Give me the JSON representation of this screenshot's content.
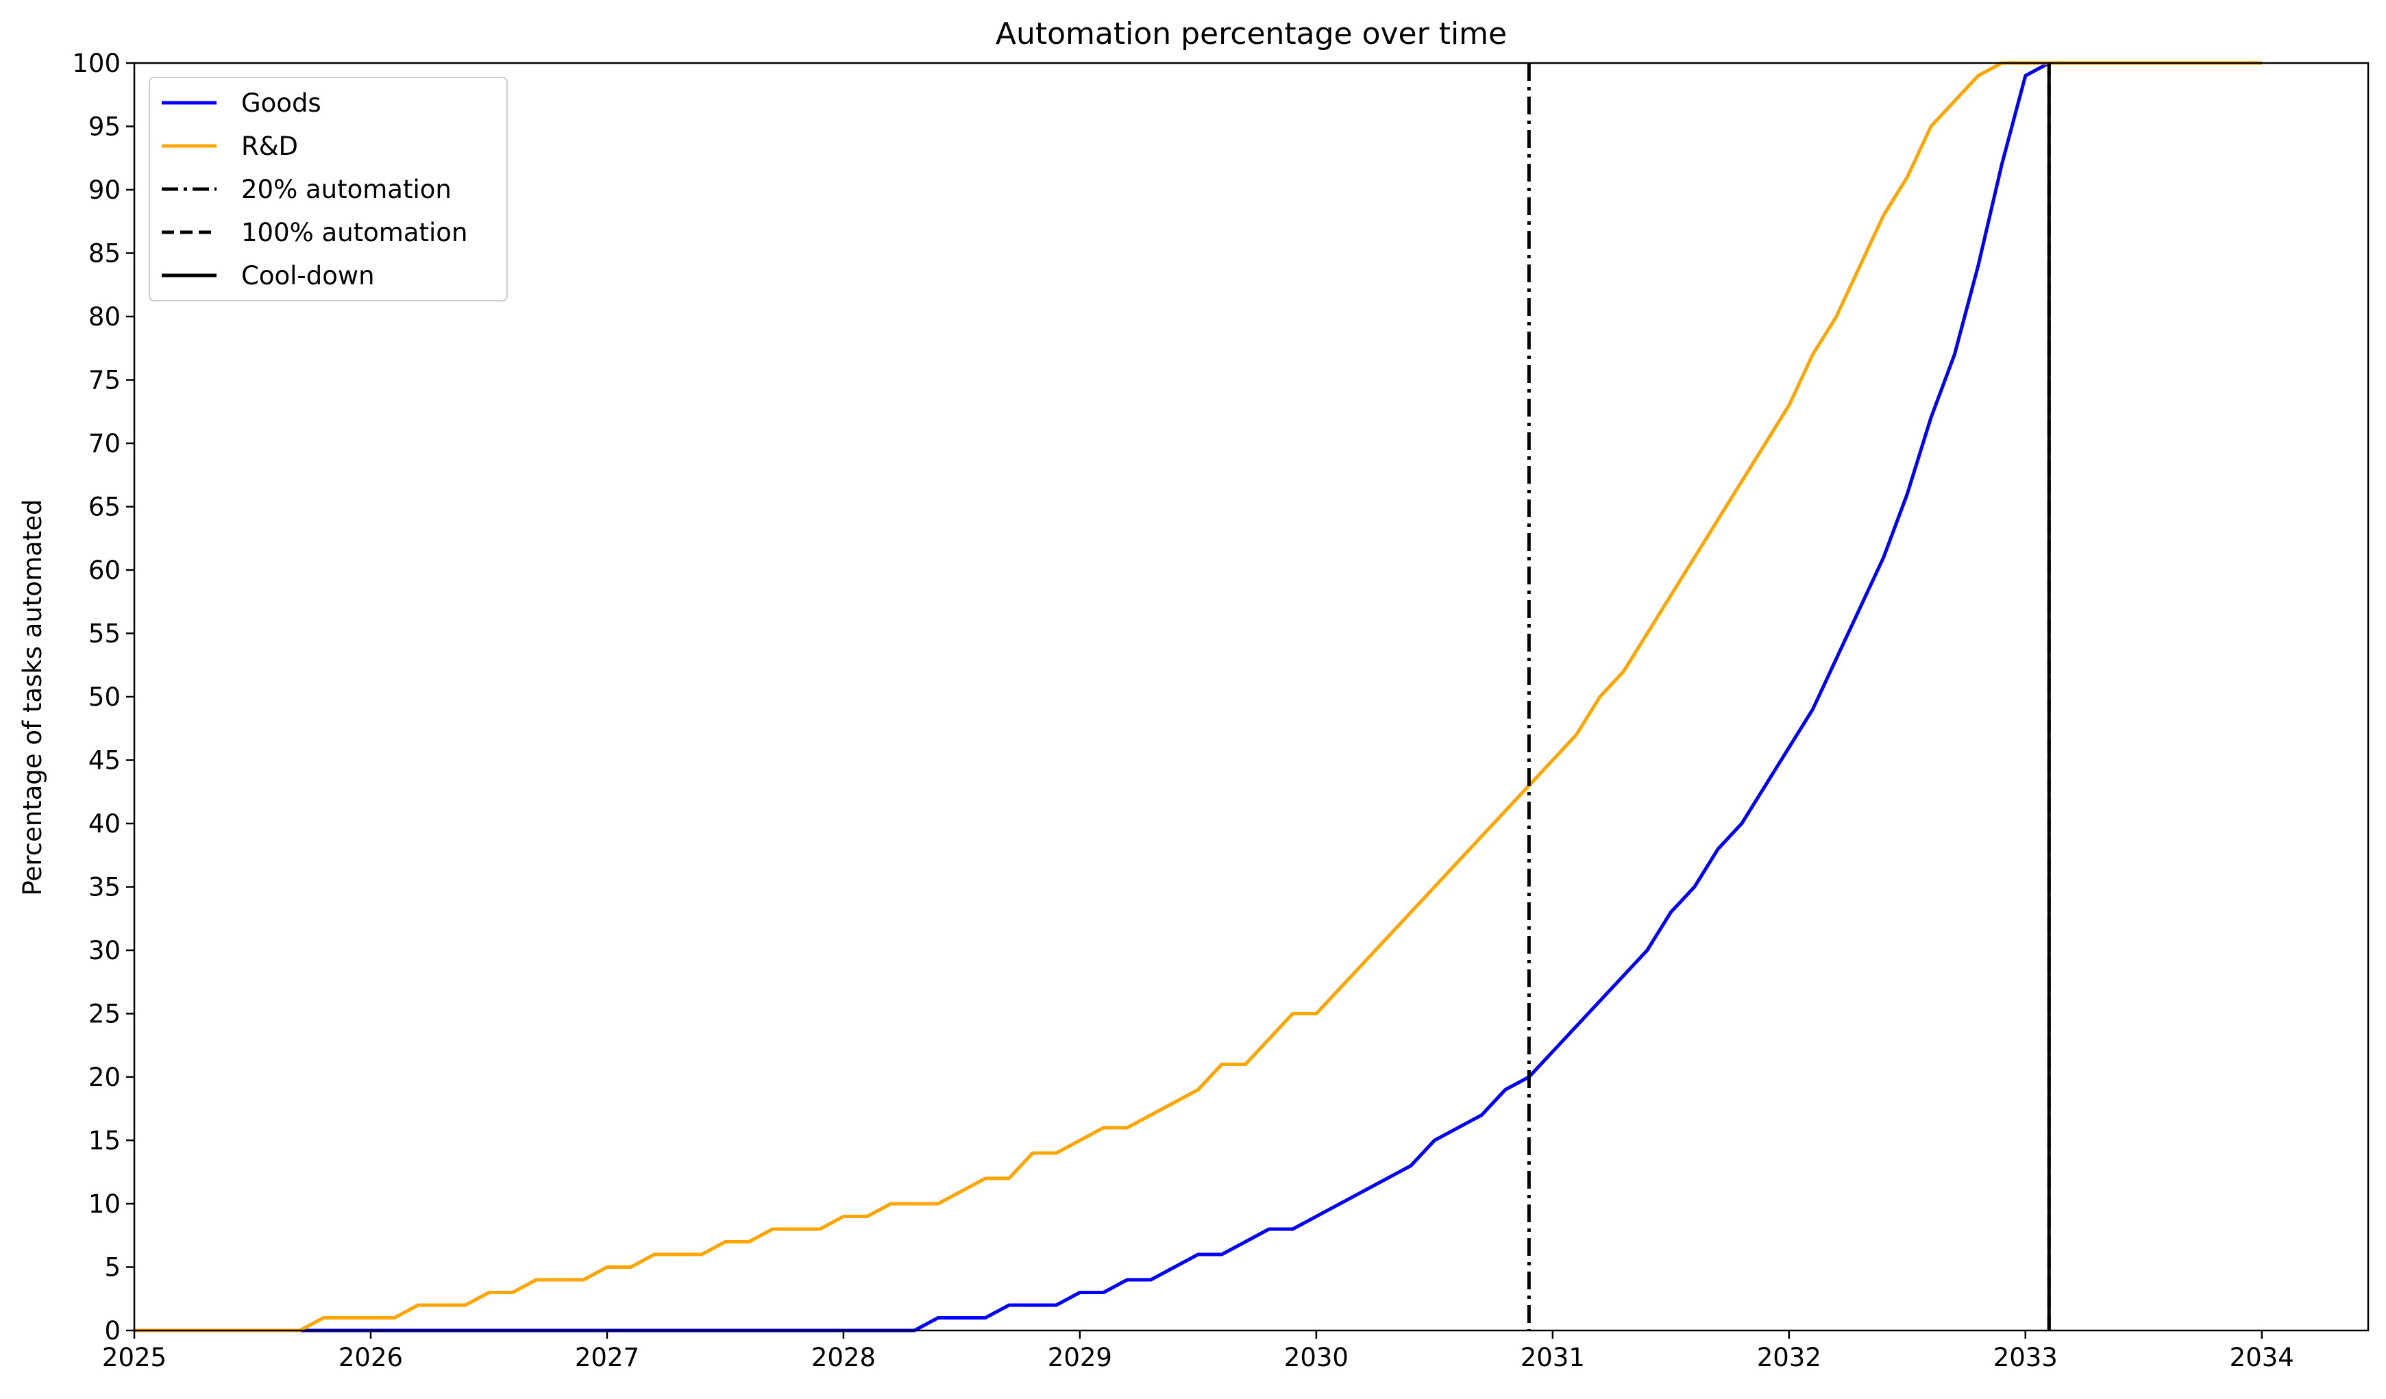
{
  "chart_data": {
    "type": "line",
    "title": "Automation percentage over time",
    "xlabel": "",
    "ylabel": "Percentage of tasks automated",
    "xlim": [
      2025,
      2034.45
    ],
    "ylim": [
      0,
      100
    ],
    "x_ticks": [
      2025,
      2026,
      2027,
      2028,
      2029,
      2030,
      2031,
      2032,
      2033,
      2034
    ],
    "y_ticks": [
      0,
      5,
      10,
      15,
      20,
      25,
      30,
      35,
      40,
      45,
      50,
      55,
      60,
      65,
      70,
      75,
      80,
      85,
      90,
      95,
      100
    ],
    "grid": false,
    "legend_position": "top-left",
    "series": [
      {
        "name": "Goods",
        "color": "#0000ff",
        "points": [
          [
            2025.0,
            0
          ],
          [
            2028.3,
            0
          ],
          [
            2028.4,
            1
          ],
          [
            2028.6,
            1
          ],
          [
            2028.7,
            2
          ],
          [
            2028.9,
            2
          ],
          [
            2029.0,
            3
          ],
          [
            2029.1,
            3
          ],
          [
            2029.2,
            4
          ],
          [
            2029.3,
            4
          ],
          [
            2029.5,
            6
          ],
          [
            2029.6,
            6
          ],
          [
            2029.8,
            8
          ],
          [
            2029.9,
            8
          ],
          [
            2030.4,
            13
          ],
          [
            2030.5,
            15
          ],
          [
            2030.7,
            17
          ],
          [
            2030.8,
            19
          ],
          [
            2030.9,
            20
          ],
          [
            2031.4,
            30
          ],
          [
            2031.5,
            33
          ],
          [
            2031.6,
            35
          ],
          [
            2031.7,
            38
          ],
          [
            2031.8,
            40
          ],
          [
            2032.1,
            49
          ],
          [
            2032.4,
            61
          ],
          [
            2032.5,
            66
          ],
          [
            2032.6,
            72
          ],
          [
            2032.7,
            77
          ],
          [
            2032.8,
            84
          ],
          [
            2032.9,
            92
          ],
          [
            2033.0,
            99
          ],
          [
            2033.1,
            100
          ],
          [
            2034.0,
            100
          ]
        ]
      },
      {
        "name": "R&D",
        "color": "#ffa500",
        "points": [
          [
            2025.0,
            0
          ],
          [
            2025.7,
            0
          ],
          [
            2025.8,
            1
          ],
          [
            2026.1,
            1
          ],
          [
            2026.2,
            2
          ],
          [
            2026.4,
            2
          ],
          [
            2026.5,
            3
          ],
          [
            2026.6,
            3
          ],
          [
            2026.7,
            4
          ],
          [
            2026.9,
            4
          ],
          [
            2027.0,
            5
          ],
          [
            2027.1,
            5
          ],
          [
            2027.2,
            6
          ],
          [
            2027.4,
            6
          ],
          [
            2027.5,
            7
          ],
          [
            2027.6,
            7
          ],
          [
            2027.7,
            8
          ],
          [
            2027.9,
            8
          ],
          [
            2028.0,
            9
          ],
          [
            2028.1,
            9
          ],
          [
            2028.2,
            10
          ],
          [
            2028.4,
            10
          ],
          [
            2028.6,
            12
          ],
          [
            2028.7,
            12
          ],
          [
            2028.8,
            14
          ],
          [
            2028.9,
            14
          ],
          [
            2029.1,
            16
          ],
          [
            2029.2,
            16
          ],
          [
            2029.5,
            19
          ],
          [
            2029.6,
            21
          ],
          [
            2029.7,
            21
          ],
          [
            2029.9,
            25
          ],
          [
            2030.0,
            25
          ],
          [
            2030.9,
            43
          ],
          [
            2031.1,
            47
          ],
          [
            2031.2,
            50
          ],
          [
            2031.3,
            52
          ],
          [
            2031.8,
            67
          ],
          [
            2032.0,
            73
          ],
          [
            2032.1,
            77
          ],
          [
            2032.2,
            80
          ],
          [
            2032.4,
            88
          ],
          [
            2032.5,
            91
          ],
          [
            2032.6,
            95
          ],
          [
            2032.7,
            97
          ],
          [
            2032.8,
            99
          ],
          [
            2032.9,
            100
          ],
          [
            2034.0,
            100
          ]
        ]
      }
    ],
    "vertical_lines": [
      {
        "name": "20% automation",
        "x": 2030.9,
        "style": "dashdot",
        "color": "#000000"
      },
      {
        "name": "100% automation",
        "x": 2033.1,
        "style": "dashed",
        "color": "#000000"
      },
      {
        "name": "Cool-down",
        "x": 2033.1,
        "style": "solid",
        "color": "#000000"
      }
    ],
    "legend": [
      {
        "label": "Goods",
        "color": "#0000ff",
        "style": "solid"
      },
      {
        "label": "R&D",
        "color": "#ffa500",
        "style": "solid"
      },
      {
        "label": "20% automation",
        "color": "#000000",
        "style": "dashdot"
      },
      {
        "label": "100% automation",
        "color": "#000000",
        "style": "dashed"
      },
      {
        "label": "Cool-down",
        "color": "#000000",
        "style": "solid"
      }
    ]
  }
}
